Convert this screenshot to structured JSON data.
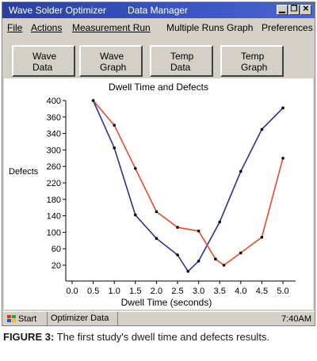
{
  "window": {
    "app_title": "Wave Solder Optimizer",
    "title": "Data Manager",
    "minimize_label": "▁",
    "restore_label": "❐",
    "close_label": "✕"
  },
  "menu": {
    "file": "File",
    "actions": "Actions",
    "measurement_run": "Measurement Run",
    "multiple_runs_graph": "Multiple Runs Graph",
    "preferences": "Preferences"
  },
  "toolbar": {
    "buttons": [
      {
        "line1": "Wave",
        "line2": "Data"
      },
      {
        "line1": "Wave",
        "line2": "Graph"
      },
      {
        "line1": "Temp",
        "line2": "Data"
      },
      {
        "line1": "Temp",
        "line2": "Graph"
      }
    ]
  },
  "chart_data": {
    "type": "line",
    "title": "Dwell Time and Defects",
    "xlabel": "Dwell Time (seconds)",
    "ylabel": "Defects",
    "x_ticks": [
      "0.0",
      "0.5",
      "1.0",
      "1.5",
      "2.0",
      "2.5",
      "3.0",
      "3.5",
      "4.0",
      "4.5",
      "5.0"
    ],
    "y_ticks": [
      "400",
      "360",
      "340",
      "300",
      "260",
      "220",
      "180",
      "140",
      "100",
      "60",
      "20"
    ],
    "y_tick_values": [
      400,
      360,
      340,
      300,
      260,
      220,
      180,
      140,
      100,
      60,
      20
    ],
    "grid": false,
    "legend": "none",
    "series": [
      {
        "color": "#2b2f9e",
        "points": [
          [
            0.5,
            400
          ],
          [
            1.0,
            305
          ],
          [
            1.5,
            142
          ],
          [
            2.0,
            85
          ],
          [
            2.5,
            45
          ],
          [
            2.75,
            5
          ],
          [
            3.0,
            30
          ],
          [
            3.5,
            125
          ],
          [
            4.0,
            248
          ],
          [
            4.5,
            345
          ],
          [
            5.0,
            382
          ]
        ]
      },
      {
        "color": "#e84a2a",
        "points": [
          [
            0.5,
            400
          ],
          [
            1.0,
            350
          ],
          [
            1.5,
            255
          ],
          [
            2.0,
            150
          ],
          [
            2.5,
            112
          ],
          [
            3.0,
            103
          ],
          [
            3.4,
            35
          ],
          [
            3.6,
            20
          ],
          [
            4.0,
            50
          ],
          [
            4.5,
            88
          ],
          [
            5.0,
            280
          ]
        ]
      }
    ]
  },
  "taskbar": {
    "start_label": "Start",
    "task_label": "Optimizer Data",
    "clock": "7:40AM",
    "logo_colors": [
      "#e03020",
      "#30a030",
      "#2050d0",
      "#f0c020"
    ]
  },
  "caption": {
    "figure_label": "FIGURE 3:",
    "text": " The first study's dwell time and defects results."
  }
}
